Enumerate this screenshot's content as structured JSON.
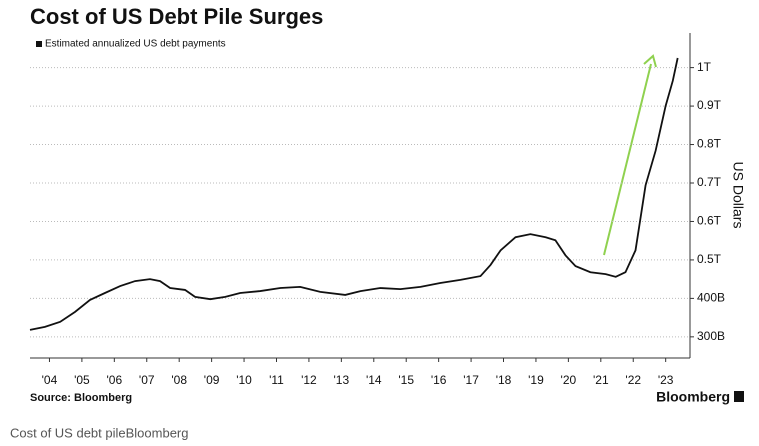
{
  "chart_data": {
    "type": "line",
    "title": "Cost of US Debt Pile Surges",
    "y_label": "US Dollars",
    "source": "Source: Bloomberg",
    "brand": "Bloomberg",
    "caption": "Cost of US debt pileBloomberg",
    "x": [
      2003.9,
      2004.36,
      2004.83,
      2005.29,
      2005.75,
      2006.21,
      2006.68,
      2007.14,
      2007.6,
      2007.91,
      2008.22,
      2008.68,
      2008.99,
      2009.46,
      2009.92,
      2010.38,
      2011.0,
      2011.62,
      2012.23,
      2012.85,
      2013.62,
      2014.09,
      2014.7,
      2015.32,
      2015.94,
      2016.55,
      2017.17,
      2017.79,
      2018.1,
      2018.41,
      2018.87,
      2019.33,
      2019.8,
      2020.1,
      2020.41,
      2020.72,
      2021.18,
      2021.65,
      2021.96,
      2022.26,
      2022.57,
      2022.88,
      2023.19,
      2023.5,
      2023.72,
      2023.87
    ],
    "series": [
      {
        "name": "Estimated annualized US debt payments",
        "color": "#111111",
        "values": [
          318000000000.0,
          326000000000.0,
          339000000000.0,
          365000000000.0,
          396000000000.0,
          414000000000.0,
          432000000000.0,
          445000000000.0,
          450000000000.0,
          445000000000.0,
          427000000000.0,
          422000000000.0,
          404000000000.0,
          398000000000.0,
          404000000000.0,
          414000000000.0,
          419000000000.0,
          427000000000.0,
          430000000000.0,
          417000000000.0,
          409000000000.0,
          419000000000.0,
          427000000000.0,
          424000000000.0,
          430000000000.0,
          440000000000.0,
          448000000000.0,
          458000000000.0,
          487000000000.0,
          525000000000.0,
          559000000000.0,
          567000000000.0,
          559000000000.0,
          551000000000.0,
          512000000000.0,
          484000000000.0,
          468000000000.0,
          463000000000.0,
          456000000000.0,
          468000000000.0,
          525000000000.0,
          694000000000.0,
          784000000000.0,
          901000000000.0,
          966000000000.0,
          1025000000000.0
        ]
      }
    ],
    "xlim": [
      2003.9,
      2024.25
    ],
    "xticks": [
      {
        "value": 2004.5,
        "label": "'04"
      },
      {
        "value": 2005.5,
        "label": "'05"
      },
      {
        "value": 2006.5,
        "label": "'06"
      },
      {
        "value": 2007.5,
        "label": "'07"
      },
      {
        "value": 2008.5,
        "label": "'08"
      },
      {
        "value": 2009.5,
        "label": "'09"
      },
      {
        "value": 2010.5,
        "label": "'10"
      },
      {
        "value": 2011.5,
        "label": "'11"
      },
      {
        "value": 2012.5,
        "label": "'12"
      },
      {
        "value": 2013.5,
        "label": "'13"
      },
      {
        "value": 2014.5,
        "label": "'14"
      },
      {
        "value": 2015.5,
        "label": "'15"
      },
      {
        "value": 2016.5,
        "label": "'16"
      },
      {
        "value": 2017.5,
        "label": "'17"
      },
      {
        "value": 2018.5,
        "label": "'18"
      },
      {
        "value": 2019.5,
        "label": "'19"
      },
      {
        "value": 2020.5,
        "label": "'20"
      },
      {
        "value": 2021.5,
        "label": "'21"
      },
      {
        "value": 2022.5,
        "label": "'22"
      },
      {
        "value": 2023.5,
        "label": "'23"
      }
    ],
    "ylim": [
      245000000000.0,
      1090000000000.0
    ],
    "yticks": [
      {
        "value": 300000000000.0,
        "label": "300B"
      },
      {
        "value": 400000000000.0,
        "label": "400B"
      },
      {
        "value": 500000000000.0,
        "label": "0.5T"
      },
      {
        "value": 600000000000.0,
        "label": "0.6T"
      },
      {
        "value": 700000000000.0,
        "label": "0.7T"
      },
      {
        "value": 800000000000.0,
        "label": "0.8T"
      },
      {
        "value": 900000000000.0,
        "label": "0.9T"
      },
      {
        "value": 1000000000000.0,
        "label": "1T"
      }
    ],
    "grid": true
  }
}
